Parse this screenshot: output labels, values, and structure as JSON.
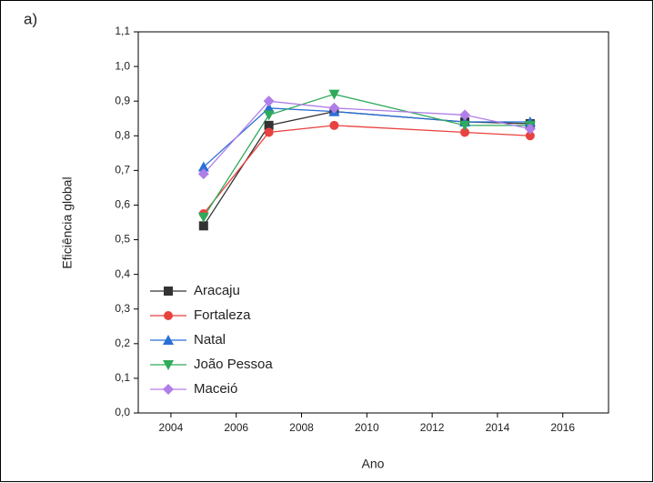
{
  "chart_data": {
    "type": "line",
    "panel_label": "a)",
    "x_label": "Ano",
    "y_label": "Eficiência global",
    "x": [
      2005,
      2007,
      2009,
      2013,
      2015
    ],
    "series": [
      {
        "name": "Aracaju",
        "color": "#333333",
        "marker": "square",
        "values": [
          0.54,
          0.83,
          0.87,
          0.84,
          0.835
        ]
      },
      {
        "name": "Fortaleza",
        "color": "#e8423f",
        "marker": "circle",
        "values": [
          0.575,
          0.81,
          0.83,
          0.81,
          0.8
        ]
      },
      {
        "name": "Natal",
        "color": "#2a6fd6",
        "marker": "triangle-up",
        "values": [
          0.71,
          0.88,
          0.87,
          0.84,
          0.84
        ]
      },
      {
        "name": "João Pessoa",
        "color": "#2eaa5a",
        "marker": "triangle-down",
        "values": [
          0.565,
          0.86,
          0.92,
          0.83,
          0.83
        ]
      },
      {
        "name": "Maceió",
        "color": "#b07ee8",
        "marker": "diamond",
        "values": [
          0.69,
          0.9,
          0.88,
          0.86,
          0.82
        ]
      }
    ],
    "xlim": [
      2003,
      2017.4
    ],
    "xticks": [
      2004,
      2006,
      2008,
      2010,
      2012,
      2014,
      2016
    ],
    "ylim": [
      0,
      1.1
    ],
    "yticks": [
      {
        "value": 0,
        "label": "0,0"
      },
      {
        "value": 0.1,
        "label": "0,1"
      },
      {
        "value": 0.2,
        "label": "0,2"
      },
      {
        "value": 0.3,
        "label": "0,3"
      },
      {
        "value": 0.4,
        "label": "0,4"
      },
      {
        "value": 0.5,
        "label": "0,5"
      },
      {
        "value": 0.6,
        "label": "0,6"
      },
      {
        "value": 0.7,
        "label": "0,7"
      },
      {
        "value": 0.8,
        "label": "0,8"
      },
      {
        "value": 0.9,
        "label": "0,9"
      },
      {
        "value": 1.0,
        "label": "1,0"
      },
      {
        "value": 1.1,
        "label": "1,1"
      }
    ],
    "legend": "lower-left",
    "grid": false
  }
}
